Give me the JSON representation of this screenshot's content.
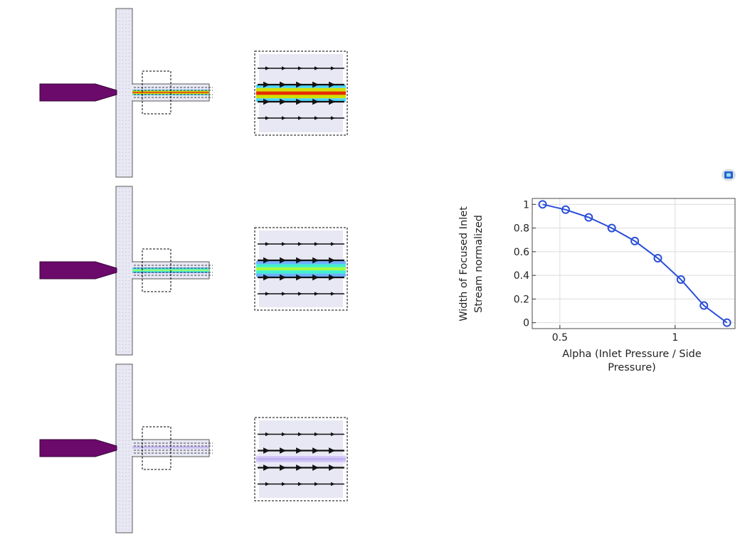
{
  "panels": [
    {
      "name": "alpha-high",
      "stream_color": "red",
      "band_colors": [
        "#4dd4ff",
        "#cfe000",
        "#e62a00",
        "#cfe000",
        "#4dd4ff"
      ]
    },
    {
      "name": "alpha-mid",
      "stream_color": "cyan",
      "band_colors": [
        "#6fb0ff",
        "#40f0d0",
        "#a0ff40",
        "#40f0d0",
        "#6fb0ff"
      ]
    },
    {
      "name": "alpha-low",
      "stream_color": "lavender",
      "band_colors": [
        "#ece8fb",
        "#c6b8f2",
        "#b09cf0",
        "#c6b8f2",
        "#ece8fb"
      ]
    }
  ],
  "colors": {
    "channel_fill": "#e8e8f4",
    "channel_stroke": "#5a5a5a",
    "inlet_fill": "#6b0a6b",
    "streamline": "#111111",
    "series": "#2a4fd8",
    "grid": "#dcdcdc"
  },
  "chart_data": {
    "type": "line",
    "xlabel": "Alpha (Inlet Pressure / Side Pressure)",
    "xlabel_lines": [
      "Alpha (Inlet Pressure / Side",
      "Pressure)"
    ],
    "ylabel": "Width of Focused Inlet Stream normalized",
    "ylabel_lines": [
      "Width of Focused Inlet",
      "Stream normalized"
    ],
    "xlim": [
      0.38,
      1.26
    ],
    "ylim": [
      -0.05,
      1.05
    ],
    "xticks": [
      0.5,
      1
    ],
    "xtick_labels": [
      "0.5",
      "1"
    ],
    "yticks": [
      0,
      0.2,
      0.4,
      0.6,
      0.8,
      1
    ],
    "ytick_labels": [
      "0",
      "0.2",
      "0.4",
      "0.6",
      "0.8",
      "1"
    ],
    "grid": true,
    "marker": "circle",
    "series": [
      {
        "x": [
          0.425,
          0.525,
          0.625,
          0.725,
          0.825,
          0.925,
          1.025,
          1.125,
          1.225
        ],
        "y": [
          1.0,
          0.955,
          0.89,
          0.8,
          0.69,
          0.545,
          0.365,
          0.145,
          0.0
        ]
      }
    ]
  }
}
